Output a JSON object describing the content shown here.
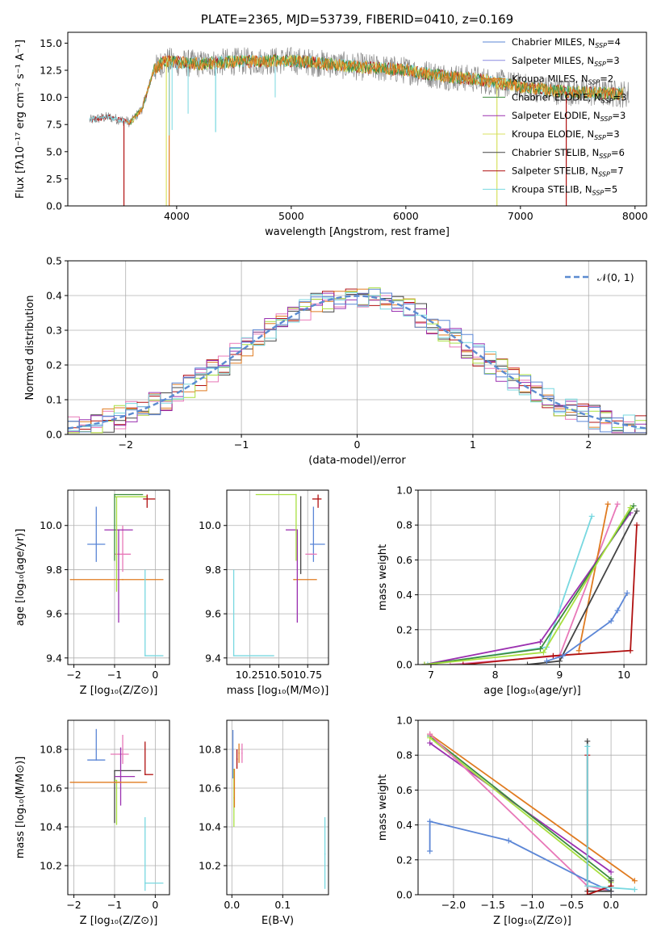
{
  "colors": {
    "chabrier_miles": "#5b86d6",
    "salpeter_miles": "#8b8be0",
    "kroupa_miles": "#e07b20",
    "chabrier_elodie": "#3c8c3c",
    "salpeter_elodie": "#9b30b0",
    "kroupa_elodie": "#d8e060",
    "chabrier_stelib": "#444444",
    "salpeter_stelib": "#b01010",
    "kroupa_stelib": "#78d8e0",
    "pink": "#e878b8",
    "lime": "#a8e040",
    "gray_data": "#888888",
    "normal_curve": "#5b8bd0"
  },
  "chart_data": [
    {
      "type": "line",
      "title": "PLATE=2365, MJD=53739, FIBERID=0410, z=0.169",
      "xlabel": "wavelength [Angstrom, rest frame]",
      "ylabel": "Flux [fλ10⁻¹⁷ erg cm⁻² s⁻¹ A⁻¹]",
      "xlim": [
        3050,
        8100
      ],
      "ylim": [
        0,
        16
      ],
      "xticks": [
        4000,
        5000,
        6000,
        7000,
        8000
      ],
      "yticks": [
        "0.0",
        "2.5",
        "5.0",
        "7.5",
        "10.0",
        "12.5",
        "15.0"
      ],
      "legend_position": "top-right",
      "legend": [
        {
          "label": "Chabrier MILES, N",
          "sub": "SSP",
          "eq": "=4"
        },
        {
          "label": "Salpeter MILES, N",
          "sub": "SSP",
          "eq": "=3"
        },
        {
          "label": "Kroupa MILES, N",
          "sub": "SSP",
          "eq": "=2"
        },
        {
          "label": "Chabrier ELODIE, N",
          "sub": "SSP",
          "eq": "=3"
        },
        {
          "label": "Salpeter ELODIE, N",
          "sub": "SSP",
          "eq": "=3"
        },
        {
          "label": "Kroupa ELODIE, N",
          "sub": "SSP",
          "eq": "=3"
        },
        {
          "label": "Chabrier STELIB, N",
          "sub": "SSP",
          "eq": "=6"
        },
        {
          "label": "Salpeter STELIB, N",
          "sub": "SSP",
          "eq": "=7"
        },
        {
          "label": "Kroupa STELIB, N",
          "sub": "SSP",
          "eq": "=5"
        }
      ],
      "envelope": {
        "x": [
          3240,
          3400,
          3600,
          3700,
          3800,
          3900,
          4000,
          4200,
          4500,
          5000,
          5500,
          6000,
          6300,
          6600,
          7000,
          7300,
          7600,
          8000
        ],
        "y": [
          7.9,
          8.2,
          7.7,
          9.0,
          12.5,
          13.4,
          13.2,
          13.1,
          13.3,
          13.4,
          12.9,
          12.5,
          12.0,
          11.7,
          11.0,
          10.6,
          10.4,
          10.3
        ]
      }
    },
    {
      "type": "histogram",
      "xlabel": "(data-model)/error",
      "ylabel": "Normed distribution",
      "xlim": [
        -2.5,
        2.5
      ],
      "ylim": [
        0,
        0.5
      ],
      "xticks": [
        "−2",
        "−1",
        "0",
        "1",
        "2"
      ],
      "yticks": [
        "0.0",
        "0.1",
        "0.2",
        "0.3",
        "0.4",
        "0.5"
      ],
      "legend_label": "𝒩(0, 1)",
      "legend_position": "top-right",
      "bin_width": 0.1
    },
    {
      "type": "scatter",
      "xlabel": "Z [log₁₀(Z/Z⊙)]",
      "ylabel": "age  [log₁₀(age/yr)]",
      "xlim": [
        -2.15,
        0.35
      ],
      "ylim": [
        9.37,
        10.16
      ],
      "xticks": [
        "−2",
        "−1",
        "0"
      ],
      "yticks": [
        "9.4",
        "9.6",
        "9.8",
        "10.0"
      ],
      "points": [
        {
          "x": -1.45,
          "y": 9.915,
          "xerr": [
            0.22,
            0.22
          ],
          "yerr": [
            0.08,
            0.17
          ],
          "color": "chabrier_miles"
        },
        {
          "x": -0.8,
          "y": 9.755,
          "xerr": [
            1.3,
            1.0
          ],
          "yerr": [
            0.0,
            0.0
          ],
          "color": "kroupa_miles"
        },
        {
          "x": -0.8,
          "y": 9.87,
          "xerr": [
            0.2,
            0.2
          ],
          "yerr": [
            0.08,
            0.13
          ],
          "color": "pink"
        },
        {
          "x": -0.9,
          "y": 9.98,
          "xerr": [
            0.35,
            0.35
          ],
          "yerr": [
            0.42,
            0.0
          ],
          "color": "salpeter_elodie"
        },
        {
          "x": -0.95,
          "y": 10.13,
          "xerr": [
            0.05,
            0.75
          ],
          "yerr": [
            0.43,
            0.0
          ],
          "color": "lime"
        },
        {
          "x": -1.0,
          "y": 10.14,
          "xerr": [
            0.0,
            0.7
          ],
          "yerr": [
            0.3,
            0.0
          ],
          "color": "chabrier_elodie"
        },
        {
          "x": -0.2,
          "y": 10.12,
          "xerr": [
            0.1,
            0.2
          ],
          "yerr": [
            0.04,
            0.02
          ],
          "color": "salpeter_stelib"
        },
        {
          "x": -0.25,
          "y": 9.41,
          "xerr": [
            0.0,
            0.45
          ],
          "yerr": [
            0.0,
            0.39
          ],
          "color": "kroupa_stelib"
        }
      ]
    },
    {
      "type": "scatter",
      "xlabel": "mass [log₁₀(M/M⊙)]",
      "xlim": [
        10.05,
        10.93
      ],
      "ylim": [
        9.37,
        10.16
      ],
      "xticks": [
        "10.25",
        "10.50",
        "10.75"
      ],
      "yticks": [
        "9.4",
        "9.6",
        "9.8",
        "10.0"
      ],
      "points": [
        {
          "x": 10.8,
          "y": 9.915,
          "xerr": [
            0.03,
            0.1
          ],
          "yerr": [
            0.08,
            0.17
          ],
          "color": "chabrier_miles"
        },
        {
          "x": 10.63,
          "y": 9.755,
          "xerr": [
            0.0,
            0.2
          ],
          "yerr": [
            0.0,
            0.0
          ],
          "color": "kroupa_miles"
        },
        {
          "x": 10.78,
          "y": 9.87,
          "xerr": [
            0.05,
            0.05
          ],
          "yerr": [
            0.0,
            0.0
          ],
          "color": "pink"
        },
        {
          "x": 10.66,
          "y": 9.98,
          "xerr": [
            0.1,
            0.0
          ],
          "yerr": [
            0.42,
            0.0
          ],
          "color": "salpeter_elodie"
        },
        {
          "x": 10.65,
          "y": 10.14,
          "xerr": [
            0.35,
            0.0
          ],
          "yerr": [
            0.3,
            0.0
          ],
          "color": "lime"
        },
        {
          "x": 10.69,
          "y": 10.13,
          "xerr": [
            0.0,
            0.0
          ],
          "yerr": [
            0.35,
            0.0
          ],
          "color": "chabrier_stelib"
        },
        {
          "x": 10.84,
          "y": 10.12,
          "xerr": [
            0.05,
            0.03
          ],
          "yerr": [
            0.04,
            0.02
          ],
          "color": "salpeter_stelib"
        },
        {
          "x": 10.11,
          "y": 9.41,
          "xerr": [
            0.0,
            0.35
          ],
          "yerr": [
            0.0,
            0.39
          ],
          "color": "kroupa_stelib"
        }
      ]
    },
    {
      "type": "line",
      "xlabel": "age  [log₁₀(age/yr)]",
      "ylabel": "mass weight",
      "xlim": [
        6.8,
        10.35
      ],
      "ylim": [
        0,
        1
      ],
      "xticks": [
        "7",
        "8",
        "9",
        "10"
      ],
      "yticks": [
        "0.0",
        "0.2",
        "0.4",
        "0.6",
        "0.8",
        "1.0"
      ],
      "series": [
        {
          "color": "kroupa_stelib",
          "x": [
            6.95,
            8.8,
            9.5
          ],
          "y": [
            0.0,
            0.1,
            0.85
          ]
        },
        {
          "color": "pink",
          "x": [
            7.3,
            9.0,
            9.9
          ],
          "y": [
            0.0,
            0.05,
            0.92
          ]
        },
        {
          "color": "kroupa_miles",
          "x": [
            9.3,
            9.75
          ],
          "y": [
            0.08,
            0.92
          ]
        },
        {
          "color": "salpeter_elodie",
          "x": [
            6.9,
            8.7,
            10.1
          ],
          "y": [
            0.0,
            0.13,
            0.87
          ]
        },
        {
          "color": "chabrier_elodie",
          "x": [
            6.9,
            8.7,
            10.15
          ],
          "y": [
            0.0,
            0.09,
            0.91
          ]
        },
        {
          "color": "lime",
          "x": [
            6.9,
            8.75,
            10.1
          ],
          "y": [
            0.0,
            0.07,
            0.9
          ]
        },
        {
          "color": "chabrier_stelib",
          "x": [
            8.5,
            9.0,
            10.2
          ],
          "y": [
            0.0,
            0.02,
            0.88
          ]
        },
        {
          "color": "salpeter_stelib",
          "x": [
            7.5,
            8.9,
            10.1,
            10.2
          ],
          "y": [
            0.0,
            0.05,
            0.08,
            0.8
          ]
        },
        {
          "color": "chabrier_miles",
          "x": [
            8.8,
            9.05,
            9.8,
            9.9,
            10.05
          ],
          "y": [
            0.02,
            0.05,
            0.25,
            0.31,
            0.41
          ]
        }
      ]
    },
    {
      "type": "scatter",
      "xlabel": "Z [log₁₀(Z/Z⊙)]",
      "ylabel": "mass [log₁₀(M/M⊙)]",
      "xlim": [
        -2.15,
        0.35
      ],
      "ylim": [
        10.05,
        10.95
      ],
      "xticks": [
        "−2",
        "−1",
        "0"
      ],
      "yticks": [
        "10.2",
        "10.4",
        "10.6",
        "10.8"
      ],
      "points": [
        {
          "x": -1.45,
          "y": 10.745,
          "xerr": [
            0.22,
            0.22
          ],
          "yerr": [
            0.0,
            0.16
          ],
          "color": "chabrier_miles"
        },
        {
          "x": -0.8,
          "y": 10.775,
          "xerr": [
            0.3,
            0.15
          ],
          "yerr": [
            0.05,
            0.1
          ],
          "color": "pink"
        },
        {
          "x": -1.0,
          "y": 10.69,
          "xerr": [
            0.0,
            0.65
          ],
          "yerr": [
            0.27,
            0.0
          ],
          "color": "chabrier_stelib"
        },
        {
          "x": -0.85,
          "y": 10.66,
          "xerr": [
            0.15,
            0.35
          ],
          "yerr": [
            0.15,
            0.15
          ],
          "color": "salpeter_elodie"
        },
        {
          "x": -0.95,
          "y": 10.64,
          "xerr": [
            0.05,
            0.0
          ],
          "yerr": [
            0.23,
            0.0
          ],
          "color": "lime"
        },
        {
          "x": -0.9,
          "y": 10.63,
          "xerr": [
            1.2,
            0.7
          ],
          "yerr": [
            0.0,
            0.0
          ],
          "color": "kroupa_miles"
        },
        {
          "x": -0.25,
          "y": 10.67,
          "xerr": [
            0.0,
            0.2
          ],
          "yerr": [
            0.0,
            0.17
          ],
          "color": "salpeter_stelib"
        },
        {
          "x": -0.25,
          "y": 10.11,
          "xerr": [
            0.0,
            0.45
          ],
          "yerr": [
            0.04,
            0.34
          ],
          "color": "kroupa_stelib"
        }
      ]
    },
    {
      "type": "scatter",
      "xlabel": "E(B-V)",
      "xlim": [
        -0.01,
        0.19
      ],
      "ylim": [
        10.05,
        10.95
      ],
      "xticks": [
        "0.0",
        "0.1"
      ],
      "yticks": [
        "10.2",
        "10.4",
        "10.6",
        "10.8"
      ],
      "points": [
        {
          "x": 0.002,
          "y": 10.8,
          "yerr": [
            0.15,
            0.1
          ],
          "color": "chabrier_miles"
        },
        {
          "x": 0.004,
          "y": 10.55,
          "yerr": [
            0.15,
            0.15
          ],
          "color": "lime"
        },
        {
          "x": 0.005,
          "y": 10.6,
          "yerr": [
            0.1,
            0.1
          ],
          "color": "kroupa_miles"
        },
        {
          "x": 0.01,
          "y": 10.75,
          "yerr": [
            0.05,
            0.05
          ],
          "color": "salpeter_stelib"
        },
        {
          "x": 0.014,
          "y": 10.78,
          "yerr": [
            0.05,
            0.05
          ],
          "color": "kroupa_miles"
        },
        {
          "x": 0.02,
          "y": 10.78,
          "yerr": [
            0.05,
            0.05
          ],
          "color": "pink"
        },
        {
          "x": 0.183,
          "y": 10.26,
          "yerr": [
            0.18,
            0.19
          ],
          "color": "kroupa_stelib"
        }
      ]
    },
    {
      "type": "line",
      "xlabel": "Z [log₁₀(Z/Z⊙)]",
      "ylabel": "mass weight",
      "xlim": [
        -2.45,
        0.45
      ],
      "ylim": [
        0,
        1
      ],
      "xticks": [
        "−2.0",
        "−1.5",
        "−1.0",
        "−0.5",
        "0.0"
      ],
      "yticks": [
        "0.0",
        "0.2",
        "0.4",
        "0.6",
        "0.8",
        "1.0"
      ],
      "series": [
        {
          "color": "salpeter_elodie",
          "x": [
            -2.3,
            0.0
          ],
          "y": [
            0.87,
            0.13
          ]
        },
        {
          "color": "chabrier_elodie",
          "x": [
            -2.3,
            0.0
          ],
          "y": [
            0.91,
            0.09
          ]
        },
        {
          "color": "lime",
          "x": [
            -2.3,
            0.0
          ],
          "y": [
            0.9,
            0.07
          ]
        },
        {
          "color": "kroupa_miles",
          "x": [
            -2.3,
            0.3
          ],
          "y": [
            0.92,
            0.08
          ]
        },
        {
          "color": "pink",
          "x": [
            -2.3,
            -0.3,
            0.0
          ],
          "y": [
            0.92,
            0.05,
            0.02
          ]
        },
        {
          "color": "chabrier_miles",
          "x": [
            -2.3,
            -2.3,
            -1.3,
            -0.3,
            0.0
          ],
          "y": [
            0.25,
            0.42,
            0.31,
            0.08,
            0.02
          ]
        },
        {
          "color": "chabrier_stelib",
          "x": [
            -0.3,
            -0.3,
            0.0,
            0.0
          ],
          "y": [
            0.88,
            0.02,
            0.02,
            0.08
          ]
        },
        {
          "color": "salpeter_stelib",
          "x": [
            -0.3,
            -0.3,
            0.0
          ],
          "y": [
            0.8,
            0.0,
            0.05
          ]
        },
        {
          "color": "kroupa_stelib",
          "x": [
            -0.3,
            -0.3,
            0.3
          ],
          "y": [
            0.85,
            0.05,
            0.03
          ]
        }
      ]
    }
  ]
}
